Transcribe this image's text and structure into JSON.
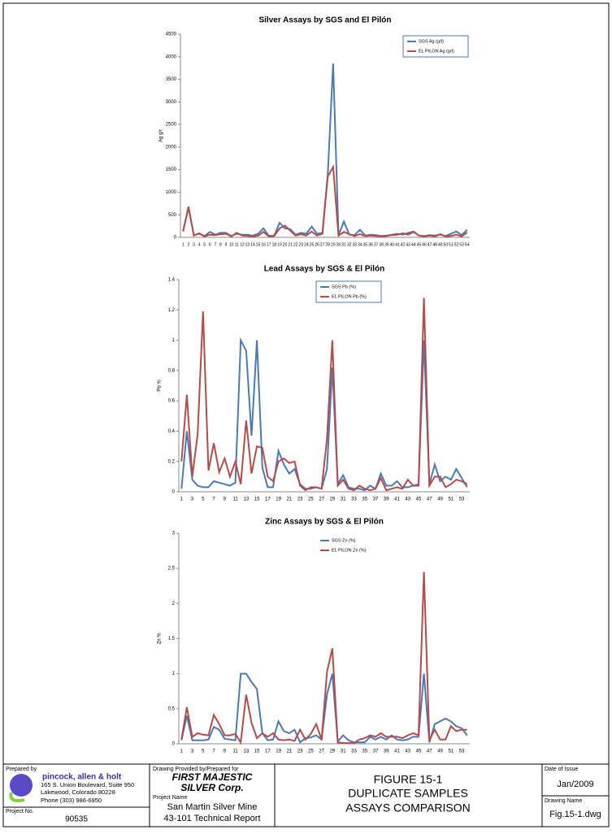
{
  "chart_data": [
    {
      "type": "line",
      "title": "Silver Assays by SGS and El Pilón",
      "y_label": "Ag g/t",
      "legend": "upper right",
      "categories": [
        1,
        2,
        3,
        4,
        5,
        6,
        7,
        8,
        9,
        10,
        11,
        12,
        13,
        14,
        15,
        16,
        17,
        18,
        19,
        20,
        21,
        22,
        23,
        24,
        25,
        26,
        27,
        28,
        29,
        30,
        31,
        32,
        33,
        34,
        35,
        36,
        37,
        38,
        39,
        40,
        41,
        42,
        43,
        44,
        45,
        46,
        47,
        48,
        49,
        50,
        51,
        52,
        53,
        54
      ],
      "ylim": [
        0,
        4500
      ],
      "yticks": [
        0,
        500,
        1000,
        1500,
        2000,
        2500,
        3000,
        3500,
        4000,
        4500
      ],
      "series": [
        {
          "name": "SGS Ag (g/t)",
          "color": "#4a7ab5",
          "values": [
            150,
            650,
            50,
            80,
            30,
            120,
            60,
            100,
            100,
            30,
            80,
            60,
            60,
            40,
            80,
            200,
            30,
            40,
            320,
            200,
            180,
            60,
            100,
            80,
            240,
            80,
            100,
            1400,
            3850,
            50,
            350,
            60,
            50,
            170,
            40,
            60,
            50,
            30,
            40,
            60,
            80,
            60,
            100,
            130,
            40,
            30,
            50,
            40,
            60,
            30,
            80,
            130,
            50,
            170
          ]
        },
        {
          "name": "EL PILON Ag (g/t)",
          "color": "#b84a4a",
          "values": [
            130,
            680,
            40,
            90,
            20,
            60,
            50,
            70,
            80,
            20,
            100,
            40,
            30,
            20,
            40,
            120,
            20,
            30,
            200,
            260,
            150,
            40,
            70,
            40,
            130,
            40,
            80,
            1350,
            1560,
            40,
            120,
            70,
            30,
            70,
            30,
            40,
            30,
            20,
            30,
            50,
            60,
            90,
            60,
            120,
            40,
            20,
            40,
            20,
            70,
            20,
            30,
            60,
            20,
            110
          ]
        }
      ]
    },
    {
      "type": "line",
      "title": "Lead Assays by SGS & El Pilón",
      "y_label": "Pb %",
      "legend": "upper center",
      "categories": [
        1,
        null,
        3,
        null,
        5,
        null,
        7,
        null,
        9,
        null,
        11,
        null,
        13,
        null,
        15,
        null,
        17,
        null,
        19,
        null,
        21,
        null,
        23,
        null,
        25,
        null,
        27,
        null,
        29,
        null,
        31,
        null,
        33,
        null,
        35,
        null,
        37,
        null,
        39,
        null,
        41,
        null,
        43,
        null,
        45,
        null,
        47,
        null,
        49,
        null,
        51,
        null,
        53,
        null
      ],
      "ylim": [
        0,
        1.4
      ],
      "yticks": [
        0,
        0.2,
        0.4,
        0.6,
        0.8,
        1,
        1.2,
        1.4
      ],
      "series": [
        {
          "name": "SGS Pb (%)",
          "color": "#4a7ab5",
          "values": [
            0.02,
            0.4,
            0.08,
            0.04,
            0.03,
            0.03,
            0.07,
            0.06,
            0.05,
            0.04,
            0.06,
            1.0,
            0.93,
            0.37,
            1.0,
            0.16,
            0.03,
            0.03,
            0.27,
            0.18,
            0.12,
            0.15,
            0.05,
            0.02,
            0.02,
            0.03,
            0.02,
            0.15,
            0.82,
            0.05,
            0.11,
            0.03,
            0.02,
            0.02,
            0.01,
            0.04,
            0.02,
            0.12,
            0.04,
            0.04,
            0.07,
            0.03,
            0.03,
            0.04,
            0.05,
            1.0,
            0.05,
            0.18,
            0.07,
            0.1,
            0.08,
            0.15,
            0.09,
            0.03
          ]
        },
        {
          "name": "EL PILON Pb (%)",
          "color": "#b84a4a",
          "values": [
            0.2,
            0.64,
            0.1,
            0.38,
            1.19,
            0.14,
            0.32,
            0.13,
            0.22,
            0.1,
            0.2,
            0.05,
            0.47,
            0.12,
            0.3,
            0.29,
            0.1,
            0.07,
            0.2,
            0.22,
            0.19,
            0.2,
            0.04,
            0.01,
            0.03,
            0.03,
            0.02,
            0.35,
            1.0,
            0.04,
            0.08,
            0.02,
            0.01,
            0.04,
            0.02,
            0.01,
            0.02,
            0.09,
            0.01,
            0.02,
            0.03,
            0.02,
            0.08,
            0.04,
            0.04,
            1.28,
            0.04,
            0.1,
            0.1,
            0.03,
            0.05,
            0.08,
            0.07,
            0.05
          ]
        }
      ]
    },
    {
      "type": "line",
      "title": "Zinc Assays by SGS & El Pilón",
      "y_label": "Zn %",
      "legend": "upper center",
      "categories": [
        1,
        null,
        3,
        null,
        5,
        null,
        7,
        null,
        9,
        null,
        11,
        null,
        13,
        null,
        15,
        null,
        17,
        null,
        19,
        null,
        21,
        null,
        23,
        null,
        25,
        null,
        27,
        null,
        29,
        null,
        31,
        null,
        33,
        null,
        35,
        null,
        37,
        null,
        39,
        null,
        41,
        null,
        43,
        null,
        45,
        null,
        47,
        null,
        49,
        null,
        51,
        null,
        53,
        null
      ],
      "ylim": [
        0,
        3
      ],
      "yticks": [
        0,
        0.5,
        1,
        1.5,
        2,
        2.5,
        3
      ],
      "series": [
        {
          "name": "SGS Zn (%)",
          "color": "#4a7ab5",
          "values": [
            0.05,
            0.4,
            0.05,
            0.05,
            0.05,
            0.06,
            0.24,
            0.2,
            0.07,
            0.06,
            0.05,
            1.0,
            1.0,
            0.88,
            0.78,
            0.15,
            0.05,
            0.06,
            0.32,
            0.18,
            0.15,
            0.2,
            0.02,
            0.08,
            0.09,
            0.12,
            0.06,
            0.7,
            1.0,
            0.03,
            0.12,
            0.05,
            0.02,
            0.02,
            0.02,
            0.1,
            0.06,
            0.1,
            0.06,
            0.12,
            0.06,
            0.05,
            0.06,
            0.1,
            0.1,
            1.0,
            0.02,
            0.28,
            0.32,
            0.36,
            0.32,
            0.25,
            0.22,
            0.12
          ]
        },
        {
          "name": "EL PILON Zn (%)",
          "color": "#b84a4a",
          "values": [
            0.06,
            0.52,
            0.1,
            0.15,
            0.13,
            0.12,
            0.41,
            0.28,
            0.12,
            0.12,
            0.14,
            0.02,
            0.7,
            0.3,
            0.08,
            0.15,
            0.1,
            0.15,
            0.06,
            0.05,
            0.06,
            0.04,
            0.2,
            0.06,
            0.14,
            0.28,
            0.06,
            1.02,
            1.36,
            0.02,
            0.01,
            0.01,
            0.01,
            0.06,
            0.08,
            0.12,
            0.1,
            0.15,
            0.1,
            0.1,
            0.1,
            0.08,
            0.12,
            0.15,
            0.12,
            2.45,
            0.05,
            0.2,
            0.06,
            0.06,
            0.25,
            0.18,
            0.2,
            0.2
          ]
        }
      ]
    }
  ],
  "title_block": {
    "prepared_by_label": "Prepared by",
    "company": "pincock, allen & holt",
    "address": [
      "165 S. Union Boulevard, Suite 950",
      "Lakewood, Colorado 80228",
      "Phone (303) 986-6950"
    ],
    "project_no_label": "Project No.",
    "project_no": "90535",
    "client_label": "Drawing Provided by/Prepared for",
    "client": [
      "FIRST MAJESTIC",
      "SILVER Corp."
    ],
    "project_name_label": "Project Name",
    "project_name": [
      "San Martin Silver Mine",
      "43-101 Technical Report"
    ],
    "figure": [
      "FIGURE 15-1",
      "DUPLICATE SAMPLES",
      "ASSAYS COMPARISON"
    ],
    "date_label": "Date of Issue",
    "date": "Jan/2009",
    "drawing_name_label": "Drawing Name",
    "drawing_name": "Fig.15-1.dwg"
  }
}
